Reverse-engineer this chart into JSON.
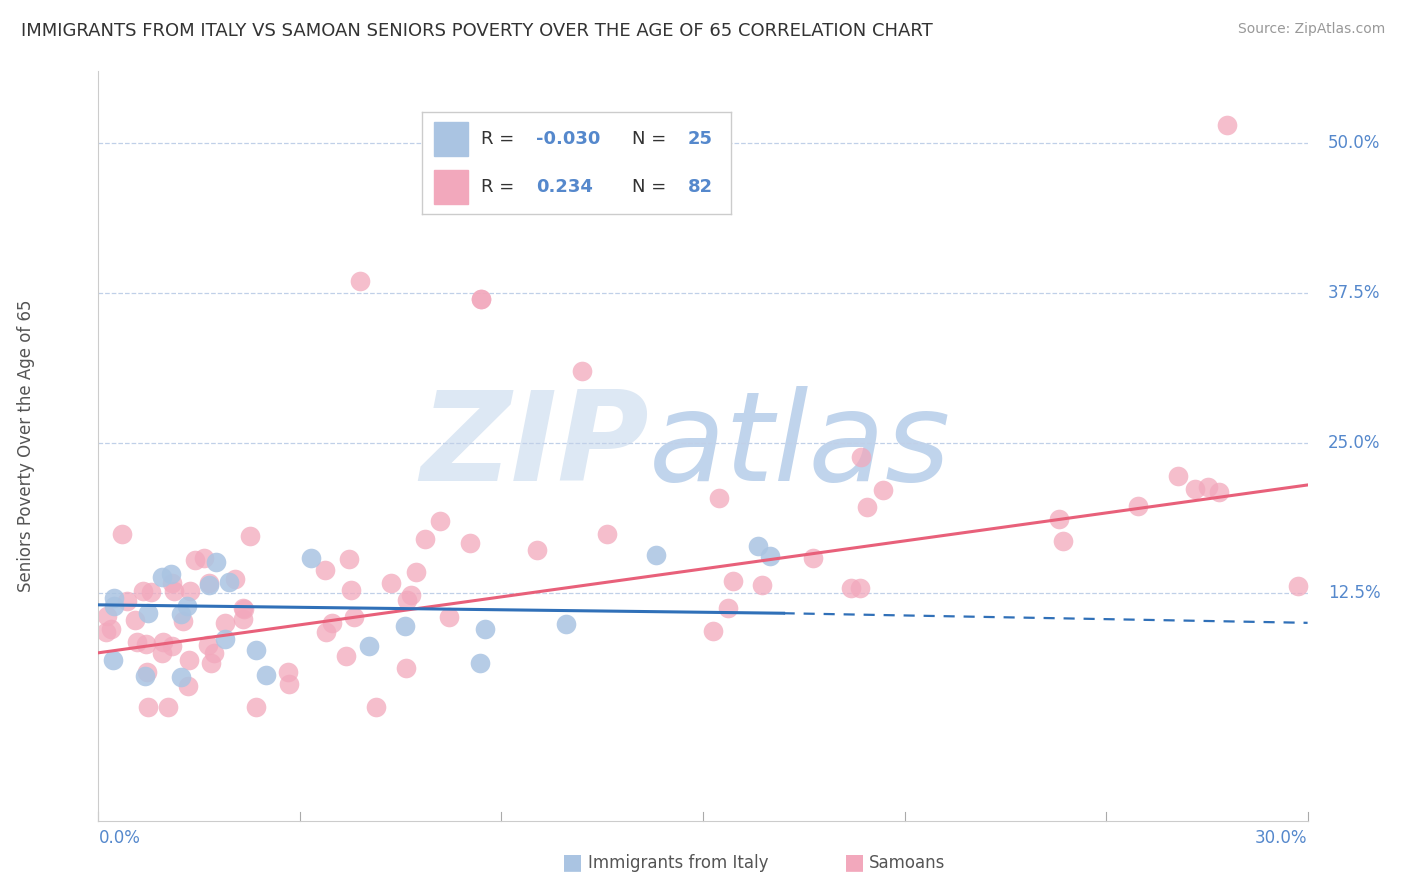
{
  "title": "IMMIGRANTS FROM ITALY VS SAMOAN SENIORS POVERTY OVER THE AGE OF 65 CORRELATION CHART",
  "source": "Source: ZipAtlas.com",
  "ylabel": "Seniors Poverty Over the Age of 65",
  "italy_color": "#aac4e2",
  "samoan_color": "#f2a8bc",
  "italy_line_color": "#3070b8",
  "samoan_line_color": "#e8607a",
  "label_color": "#5588cc",
  "background_color": "#ffffff",
  "xlim": [
    0.0,
    0.3
  ],
  "ylim": [
    -0.065,
    0.56
  ],
  "legend_italy_r": "-0.030",
  "legend_italy_n": "25",
  "legend_samoan_r": "0.234",
  "legend_samoan_n": "82",
  "yticks": [
    0.125,
    0.25,
    0.375,
    0.5
  ],
  "ytick_labels": [
    "12.5%",
    "25.0%",
    "37.5%",
    "50.0%"
  ],
  "italy_trend": [
    0.0,
    0.17,
    0.115,
    0.108
  ],
  "italy_dash": [
    0.17,
    0.3,
    0.108,
    0.1
  ],
  "samoan_trend": [
    0.0,
    0.3,
    0.075,
    0.215
  ],
  "seed_italy": 7,
  "seed_samoan": 3
}
